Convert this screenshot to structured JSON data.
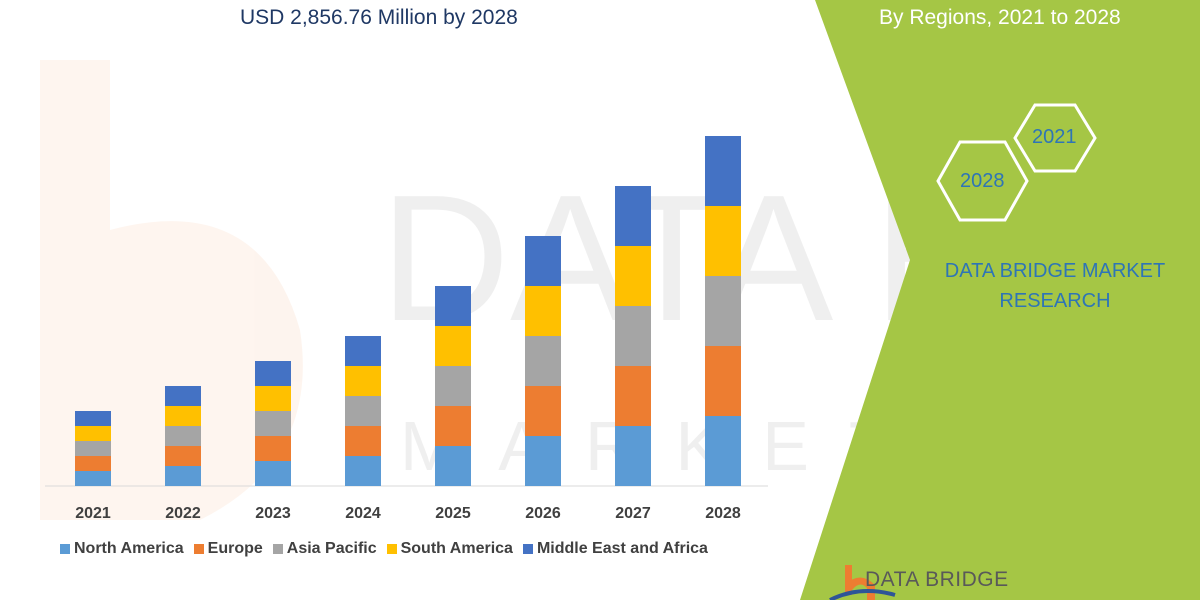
{
  "header": {
    "title_line2": "USD 2,856.76 Million by 2028",
    "right_title_line2": "By Regions, 2021 to 2028"
  },
  "panel": {
    "hex_years": [
      "2021",
      "2028"
    ],
    "brand_line1": "DATA BRIDGE MARKET",
    "brand_line2": "RESEARCH",
    "footer_logo": "DATA BRIDGE",
    "accent_color": "#a5c645",
    "watermark": "DATA BRIDGE MARKET RESEARCH"
  },
  "chart_data": {
    "type": "bar",
    "stacked": true,
    "title": "",
    "xlabel": "",
    "ylabel": "",
    "grid": false,
    "legend_placement": "bottom",
    "categories": [
      "2021",
      "2022",
      "2023",
      "2024",
      "2025",
      "2026",
      "2027",
      "2028"
    ],
    "series": [
      {
        "name": "North America",
        "color": "#5b9bd5",
        "values": [
          15,
          20,
          25,
          30,
          40,
          50,
          60,
          70
        ]
      },
      {
        "name": "Europe",
        "color": "#ed7d31",
        "values": [
          15,
          20,
          25,
          30,
          40,
          50,
          60,
          70
        ]
      },
      {
        "name": "Asia Pacific",
        "color": "#a5a5a5",
        "values": [
          15,
          20,
          25,
          30,
          40,
          50,
          60,
          70
        ]
      },
      {
        "name": "South America",
        "color": "#ffc000",
        "values": [
          15,
          20,
          25,
          30,
          40,
          50,
          60,
          70
        ]
      },
      {
        "name": "Middle East and Africa",
        "color": "#4472c4",
        "values": [
          15,
          20,
          25,
          30,
          40,
          50,
          60,
          70
        ]
      }
    ]
  }
}
